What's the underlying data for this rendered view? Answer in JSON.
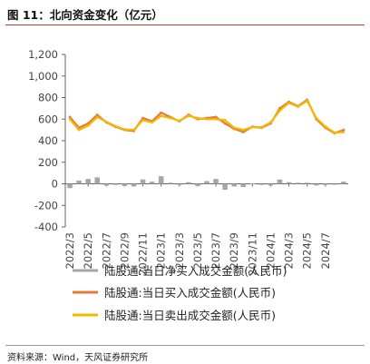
{
  "title": "图 11：北向资金变化（亿元）",
  "source": "资料来源：Wind，天风证券研究所",
  "colors": {
    "net": "#a6a6a6",
    "buy": "#e07b39",
    "sell": "#f5b800",
    "title_rule": "#c0392b"
  },
  "chart_data": {
    "type": "line",
    "title": "北向资金变化（亿元）",
    "xlabel": "",
    "ylabel": "",
    "ylim": [
      -400,
      1200
    ],
    "yticks": [
      -400,
      -200,
      0,
      200,
      400,
      600,
      800,
      1000,
      1200
    ],
    "ytick_labels": [
      "-400",
      "-200",
      "0",
      "200",
      "400",
      "600",
      "800",
      "1,000",
      "1,200"
    ],
    "x_start": "2022-03",
    "x_end": "2024-09",
    "xtick_labels": [
      "2022/3",
      "2022/5",
      "2022/7",
      "2022/9",
      "2022/11",
      "2023/1",
      "2023/3",
      "2023/5",
      "2023/7",
      "2023/9",
      "2023/11",
      "2024/1",
      "2024/3",
      "2024/5",
      "2024/7"
    ],
    "grid": false,
    "legend": "bottom",
    "series": [
      {
        "name": "陆股通:当日净买入成交金额(人民币)",
        "type": "bar",
        "monthly": [
          {
            "month": "2022-03",
            "value": -40
          },
          {
            "month": "2022-04",
            "value": 30
          },
          {
            "month": "2022-05",
            "value": 45
          },
          {
            "month": "2022-06",
            "value": 60
          },
          {
            "month": "2022-07",
            "value": -15
          },
          {
            "month": "2022-08",
            "value": -10
          },
          {
            "month": "2022-09",
            "value": -20
          },
          {
            "month": "2022-10",
            "value": -25
          },
          {
            "month": "2022-11",
            "value": 40
          },
          {
            "month": "2022-12",
            "value": 20
          },
          {
            "month": "2023-01",
            "value": 70
          },
          {
            "month": "2023-02",
            "value": 10
          },
          {
            "month": "2023-03",
            "value": -10
          },
          {
            "month": "2023-04",
            "value": 15
          },
          {
            "month": "2023-05",
            "value": -20
          },
          {
            "month": "2023-06",
            "value": 25
          },
          {
            "month": "2023-07",
            "value": 45
          },
          {
            "month": "2023-08",
            "value": -55
          },
          {
            "month": "2023-09",
            "value": -25
          },
          {
            "month": "2023-10",
            "value": -30
          },
          {
            "month": "2023-11",
            "value": 5
          },
          {
            "month": "2023-12",
            "value": -10
          },
          {
            "month": "2024-01",
            "value": -15
          },
          {
            "month": "2024-02",
            "value": 40
          },
          {
            "month": "2024-03",
            "value": 15
          },
          {
            "month": "2024-04",
            "value": 10
          },
          {
            "month": "2024-05",
            "value": 10
          },
          {
            "month": "2024-06",
            "value": -15
          },
          {
            "month": "2024-07",
            "value": -10
          },
          {
            "month": "2024-08",
            "value": -5
          },
          {
            "month": "2024-09",
            "value": 20
          }
        ]
      },
      {
        "name": "陆股通:当日买入成交金额(人民币)",
        "type": "line",
        "monthly": [
          {
            "month": "2022-03",
            "value": 620
          },
          {
            "month": "2022-04",
            "value": 520
          },
          {
            "month": "2022-05",
            "value": 560
          },
          {
            "month": "2022-06",
            "value": 640
          },
          {
            "month": "2022-07",
            "value": 570
          },
          {
            "month": "2022-08",
            "value": 530
          },
          {
            "month": "2022-09",
            "value": 500
          },
          {
            "month": "2022-10",
            "value": 490
          },
          {
            "month": "2022-11",
            "value": 610
          },
          {
            "month": "2022-12",
            "value": 580
          },
          {
            "month": "2023-01",
            "value": 660
          },
          {
            "month": "2023-02",
            "value": 620
          },
          {
            "month": "2023-03",
            "value": 580
          },
          {
            "month": "2023-04",
            "value": 640
          },
          {
            "month": "2023-05",
            "value": 600
          },
          {
            "month": "2023-06",
            "value": 610
          },
          {
            "month": "2023-07",
            "value": 620
          },
          {
            "month": "2023-08",
            "value": 560
          },
          {
            "month": "2023-09",
            "value": 510
          },
          {
            "month": "2023-10",
            "value": 480
          },
          {
            "month": "2023-11",
            "value": 530
          },
          {
            "month": "2023-12",
            "value": 520
          },
          {
            "month": "2024-01",
            "value": 560
          },
          {
            "month": "2024-02",
            "value": 700
          },
          {
            "month": "2024-03",
            "value": 760
          },
          {
            "month": "2024-04",
            "value": 720
          },
          {
            "month": "2024-05",
            "value": 780
          },
          {
            "month": "2024-06",
            "value": 600
          },
          {
            "month": "2024-07",
            "value": 520
          },
          {
            "month": "2024-08",
            "value": 470
          },
          {
            "month": "2024-09",
            "value": 500
          }
        ]
      },
      {
        "name": "陆股通:当日卖出成交金额(人民币)",
        "type": "line",
        "monthly": [
          {
            "month": "2022-03",
            "value": 600
          },
          {
            "month": "2022-04",
            "value": 500
          },
          {
            "month": "2022-05",
            "value": 540
          },
          {
            "month": "2022-06",
            "value": 620
          },
          {
            "month": "2022-07",
            "value": 575
          },
          {
            "month": "2022-08",
            "value": 535
          },
          {
            "month": "2022-09",
            "value": 505
          },
          {
            "month": "2022-10",
            "value": 500
          },
          {
            "month": "2022-11",
            "value": 590
          },
          {
            "month": "2022-12",
            "value": 570
          },
          {
            "month": "2023-01",
            "value": 630
          },
          {
            "month": "2023-02",
            "value": 610
          },
          {
            "month": "2023-03",
            "value": 585
          },
          {
            "month": "2023-04",
            "value": 630
          },
          {
            "month": "2023-05",
            "value": 610
          },
          {
            "month": "2023-06",
            "value": 600
          },
          {
            "month": "2023-07",
            "value": 600
          },
          {
            "month": "2023-08",
            "value": 590
          },
          {
            "month": "2023-09",
            "value": 520
          },
          {
            "month": "2023-10",
            "value": 500
          },
          {
            "month": "2023-11",
            "value": 525
          },
          {
            "month": "2023-12",
            "value": 525
          },
          {
            "month": "2024-01",
            "value": 570
          },
          {
            "month": "2024-02",
            "value": 680
          },
          {
            "month": "2024-03",
            "value": 750
          },
          {
            "month": "2024-04",
            "value": 715
          },
          {
            "month": "2024-05",
            "value": 770
          },
          {
            "month": "2024-06",
            "value": 610
          },
          {
            "month": "2024-07",
            "value": 530
          },
          {
            "month": "2024-08",
            "value": 475
          },
          {
            "month": "2024-09",
            "value": 480
          }
        ]
      }
    ]
  }
}
